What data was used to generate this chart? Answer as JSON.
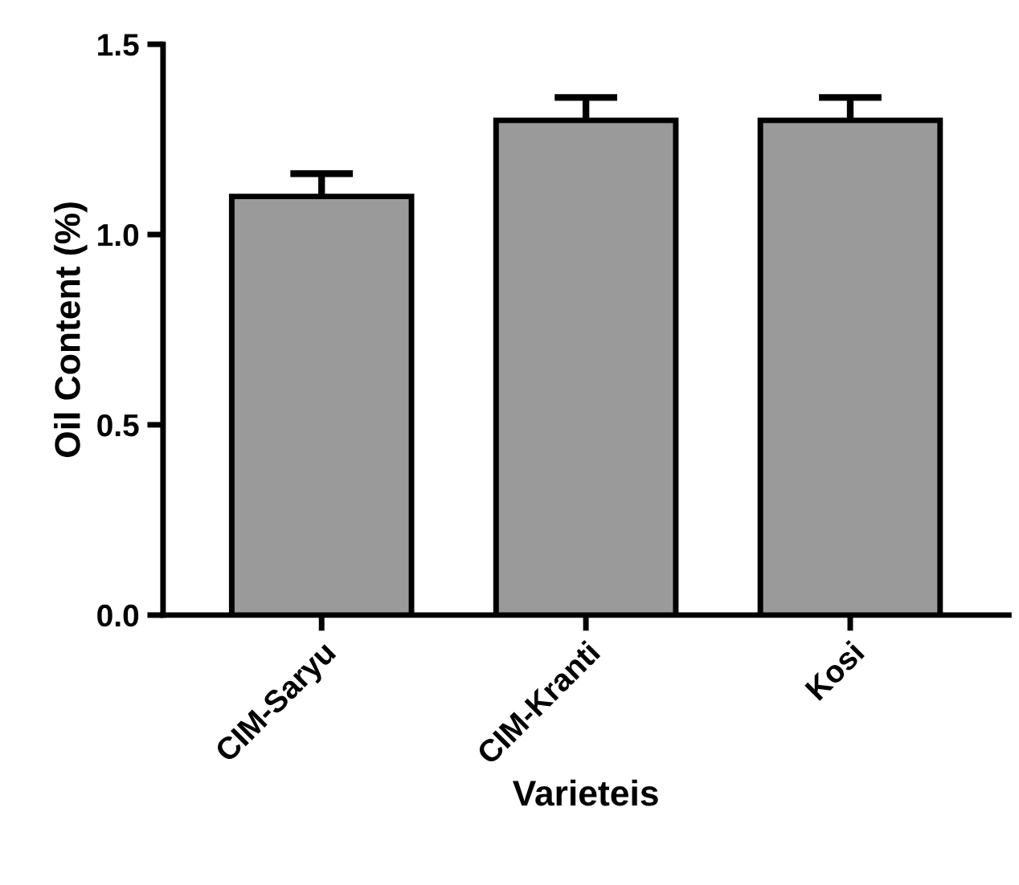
{
  "chart_data": {
    "type": "bar",
    "xlabel": "Varieteis",
    "ylabel": "Oil Content (%)",
    "categories": [
      "CIM-Saryu",
      "CIM-Kranti",
      "Kosi"
    ],
    "values": [
      1.1,
      1.3,
      1.3
    ],
    "errors": [
      0.06,
      0.06,
      0.06
    ],
    "color": "#9a9a9a",
    "ylim": [
      0,
      1.5
    ],
    "yticks": [
      {
        "value": 0,
        "label": "0.0"
      },
      0.5,
      {
        "value": 1,
        "label": "1.0"
      },
      1.5
    ],
    "grid": false
  }
}
